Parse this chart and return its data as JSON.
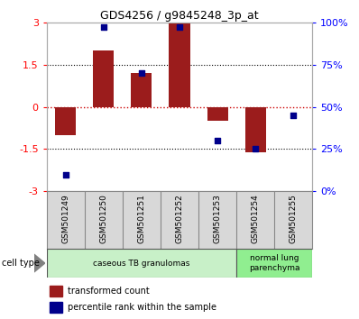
{
  "title": "GDS4256 / g9845248_3p_at",
  "categories": [
    "GSM501249",
    "GSM501250",
    "GSM501251",
    "GSM501252",
    "GSM501253",
    "GSM501254",
    "GSM501255"
  ],
  "bar_values": [
    -1.0,
    2.0,
    1.2,
    3.0,
    -0.5,
    -1.62,
    0.0
  ],
  "percentile_values": [
    10,
    97,
    70,
    97,
    30,
    25,
    45
  ],
  "ylim_left": [
    -3,
    3
  ],
  "ylim_right": [
    0,
    100
  ],
  "bar_color": "#9B1C1C",
  "dot_color": "#00008B",
  "hline_color": "#CC0000",
  "dotted_color": "black",
  "cell_type_groups": [
    {
      "label": "caseous TB granulomas",
      "span": [
        0,
        5
      ],
      "color": "#c8f0c8"
    },
    {
      "label": "normal lung\nparenchyma",
      "span": [
        5,
        7
      ],
      "color": "#90EE90"
    }
  ],
  "legend_bar_label": "transformed count",
  "legend_dot_label": "percentile rank within the sample",
  "cell_type_label": "cell type",
  "yticks_left": [
    -3,
    -1.5,
    0,
    1.5,
    3
  ],
  "yticks_right": [
    0,
    25,
    50,
    75,
    100
  ],
  "label_bg_color": "#d8d8d8"
}
